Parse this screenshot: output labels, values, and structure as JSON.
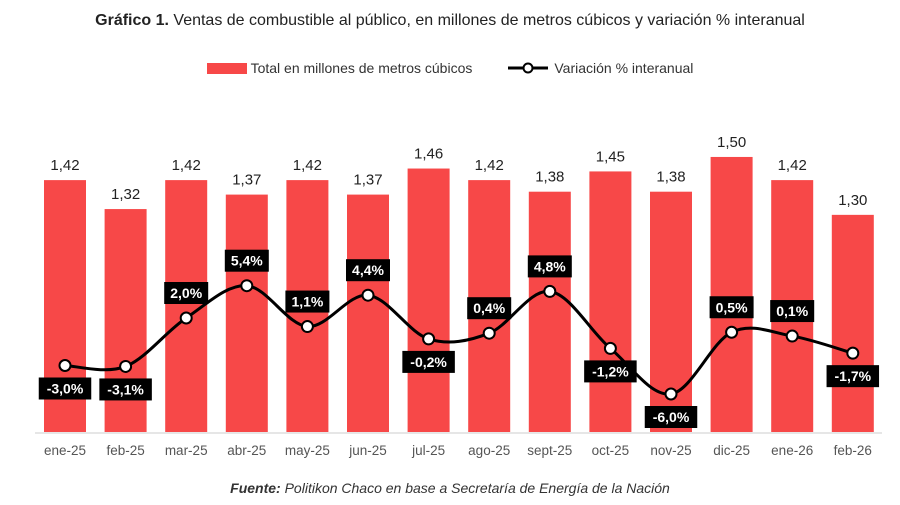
{
  "title": {
    "bold": "Gráfico 1.",
    "text": " Ventas de combustible al público, en millones de metros cúbicos y variación % interanual"
  },
  "legend": {
    "bars": "Total en millones de metros cúbicos",
    "line": "Variación % interanual"
  },
  "source": {
    "bold": "Fuente:",
    "text": " Politikon Chaco en base a Secretaría de Energía de la Nación"
  },
  "colors": {
    "bar": "#f74848",
    "line": "#000000",
    "label_box": "#000000",
    "label_text": "#ffffff"
  },
  "chart_data": {
    "type": "bar+line",
    "categories": [
      "ene-25",
      "feb-25",
      "mar-25",
      "abr-25",
      "may-25",
      "jun-25",
      "jul-25",
      "ago-25",
      "sept-25",
      "oct-25",
      "nov-25",
      "dic-25",
      "ene-26",
      "feb-26"
    ],
    "series": [
      {
        "name": "Total en millones de metros cúbicos",
        "type": "bar",
        "axis": "left",
        "values": [
          1.42,
          1.32,
          1.42,
          1.37,
          1.42,
          1.37,
          1.46,
          1.42,
          1.38,
          1.45,
          1.38,
          1.5,
          1.42,
          1.3
        ],
        "labels": [
          "1,42",
          "1,32",
          "1,42",
          "1,37",
          "1,42",
          "1,37",
          "1,46",
          "1,42",
          "1,38",
          "1,45",
          "1,38",
          "1,50",
          "1,42",
          "1,30"
        ]
      },
      {
        "name": "Variación % interanual",
        "type": "line",
        "axis": "right",
        "values": [
          -3.0,
          -3.1,
          2.0,
          5.4,
          1.1,
          4.4,
          -0.2,
          0.4,
          4.8,
          -1.2,
          -6.0,
          0.5,
          0.1,
          -1.7
        ],
        "labels": [
          "-3,0%",
          "-3,1%",
          "2,0%",
          "5,4%",
          "1,1%",
          "4,4%",
          "-0,2%",
          "0,4%",
          "4,8%",
          "-1,2%",
          "-6,0%",
          "0,5%",
          "0,1%",
          "-1,7%"
        ]
      }
    ],
    "ylim_left": [
      0.55,
      1.6
    ],
    "ylim_right": [
      -10,
      22
    ],
    "grid": false,
    "legend_position": "top"
  }
}
